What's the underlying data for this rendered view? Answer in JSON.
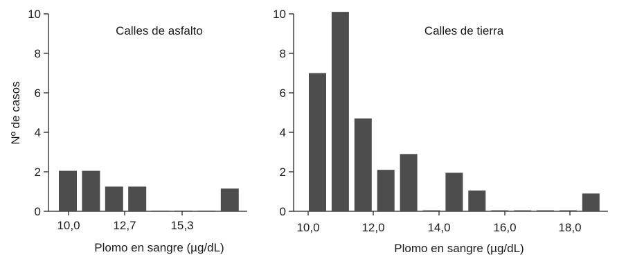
{
  "chart_data": [
    {
      "type": "bar",
      "title": "Calles de asfalto",
      "xlabel": "Plomo en sangre (µg/dL)",
      "ylabel": "Nº de casos",
      "ylim": [
        0,
        10
      ],
      "yticks": [
        "0",
        "2",
        "4",
        "6",
        "8",
        "10"
      ],
      "xtick_labels": [
        "10,0",
        "12,7",
        "15,3"
      ],
      "values": [
        2.05,
        2.05,
        1.25,
        1.25,
        0,
        0,
        0,
        1.15
      ],
      "colors": {
        "bar": "#4d4d4d"
      }
    },
    {
      "type": "bar",
      "title": "Calles de tierra",
      "xlabel": "Plomo en sangre (µg/dL)",
      "ylabel": "",
      "ylim": [
        0,
        10
      ],
      "yticks": [
        "0",
        "2",
        "4",
        "6",
        "8",
        "10"
      ],
      "xtick_labels": [
        "10,0",
        "12,0",
        "14,0",
        "16,0",
        "18,0"
      ],
      "values": [
        7.0,
        10.1,
        4.7,
        2.1,
        2.9,
        0.05,
        1.95,
        1.05,
        0.05,
        0.05,
        0.05,
        0.05,
        0.9
      ],
      "colors": {
        "bar": "#4d4d4d"
      }
    }
  ]
}
